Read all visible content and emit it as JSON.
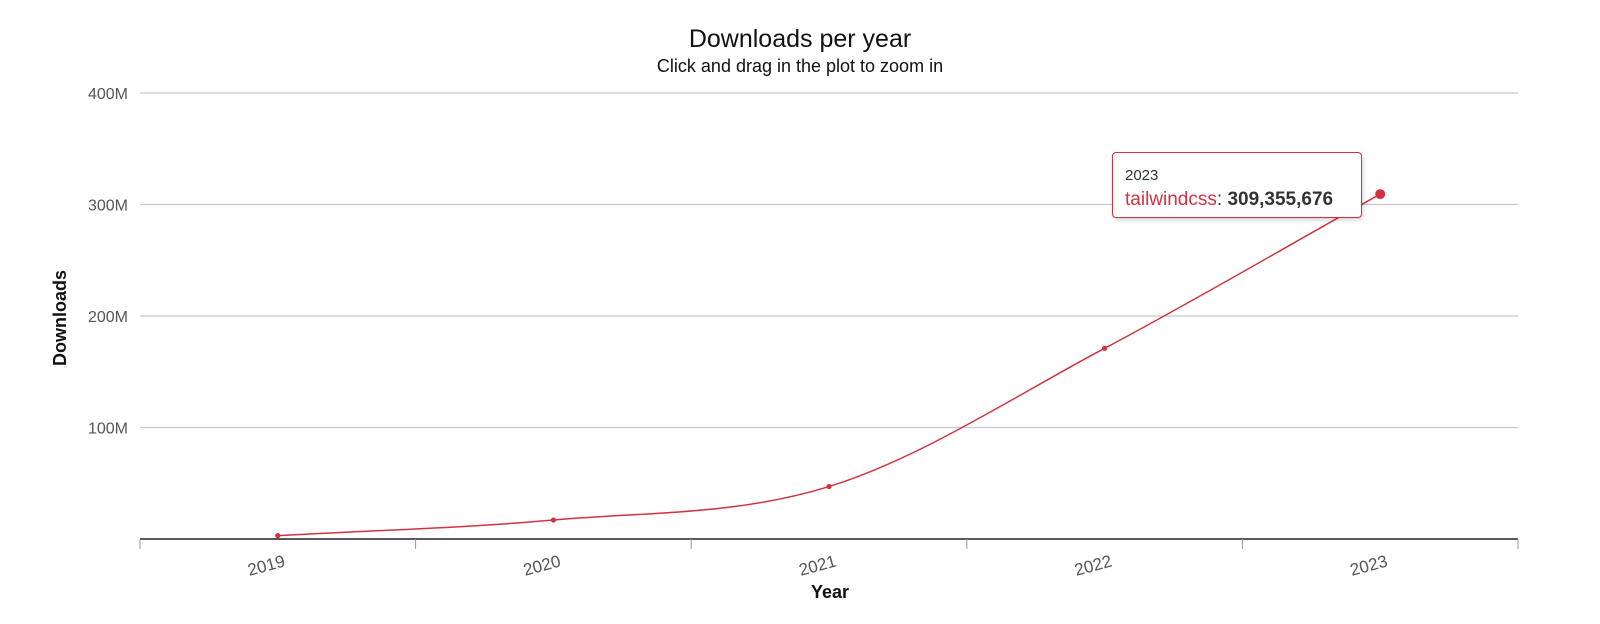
{
  "chart_data": {
    "type": "line",
    "title": "Downloads per year",
    "subtitle": "Click and drag in the plot to zoom in",
    "xlabel": "Year",
    "ylabel": "Downloads",
    "categories": [
      "2019",
      "2020",
      "2021",
      "2022",
      "2023"
    ],
    "series": [
      {
        "name": "tailwindcss",
        "values": [
          3000000,
          17000000,
          47000000,
          171000000,
          309355676
        ]
      }
    ],
    "ylim": [
      0,
      400000000
    ],
    "yticks": [
      {
        "value": 100000000,
        "label": "100M"
      },
      {
        "value": 200000000,
        "label": "200M"
      },
      {
        "value": 300000000,
        "label": "300M"
      },
      {
        "value": 400000000,
        "label": "400M"
      }
    ],
    "grid": true,
    "legend": "none",
    "series_color": "#d23240"
  },
  "tooltip": {
    "x": "2023",
    "series": "tailwindcss",
    "separator": ": ",
    "value": "309,355,676"
  }
}
